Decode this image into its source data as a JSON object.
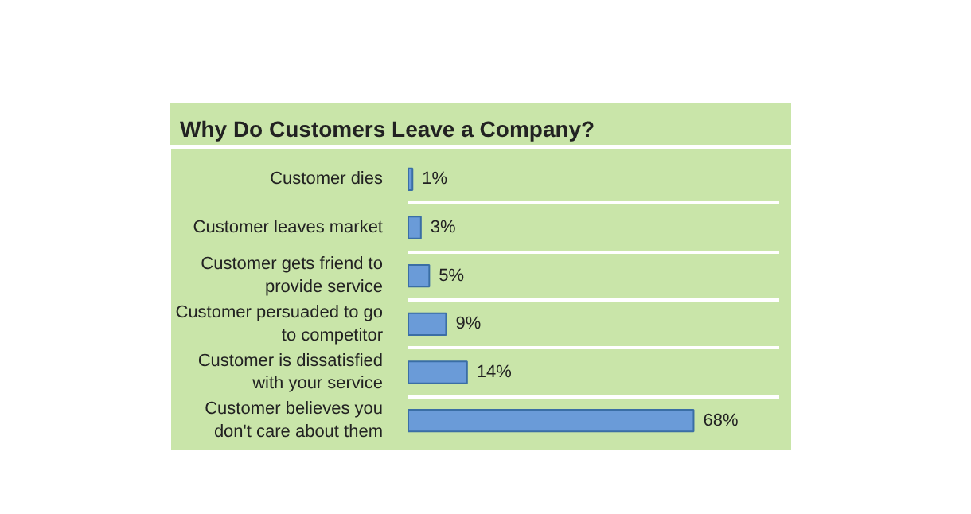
{
  "chart_data": {
    "type": "bar",
    "orientation": "horizontal",
    "title": "Why Do Customers Leave a Company?",
    "categories": [
      "Customer dies",
      "Customer leaves market",
      "Customer gets friend to provide service",
      "Customer persuaded to go to competitor",
      "Customer is dissatisfied with your service",
      "Customer believes you don't care about them"
    ],
    "values": [
      1,
      3,
      5,
      9,
      14,
      68
    ],
    "value_labels": [
      "1%",
      "3%",
      "5%",
      "9%",
      "14%",
      "68%"
    ],
    "color": "#6a9bd8",
    "grid": false
  }
}
